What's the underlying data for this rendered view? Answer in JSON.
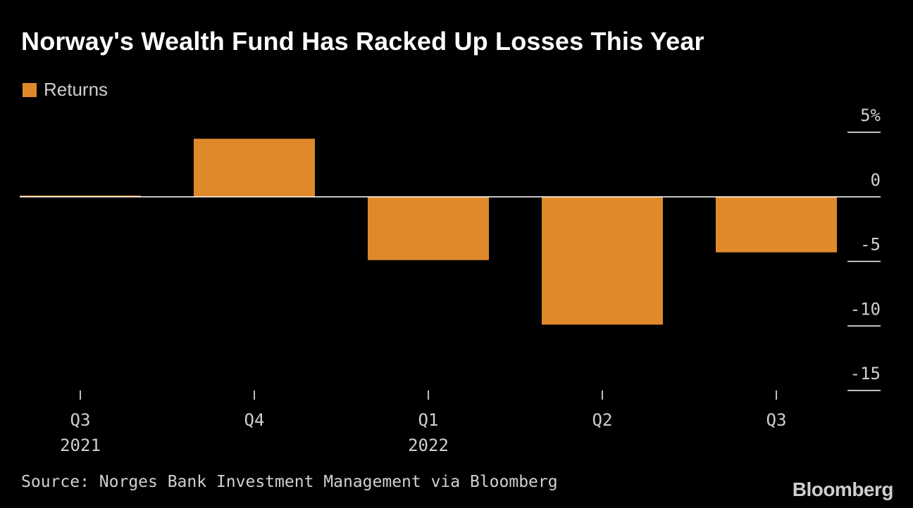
{
  "chart_data": {
    "type": "bar",
    "title": "Norway's Wealth Fund Has Racked Up Losses This Year",
    "legend": [
      "Returns"
    ],
    "legend_position": "top-left",
    "categories": [
      {
        "quarter": "Q3",
        "year": "2021"
      },
      {
        "quarter": "Q4",
        "year": ""
      },
      {
        "quarter": "Q1",
        "year": "2022"
      },
      {
        "quarter": "Q2",
        "year": ""
      },
      {
        "quarter": "Q3",
        "year": ""
      }
    ],
    "series": [
      {
        "name": "Returns",
        "values": [
          0.1,
          4.5,
          -4.9,
          -9.9,
          -4.3
        ]
      }
    ],
    "ylim": [
      -15,
      5
    ],
    "y_ticks": [
      {
        "value": 5,
        "label": "5%"
      },
      {
        "value": 0,
        "label": "0"
      },
      {
        "value": -5,
        "label": "-5"
      },
      {
        "value": -10,
        "label": "-10"
      },
      {
        "value": -15,
        "label": "-15"
      }
    ],
    "y_axis_side": "right",
    "grid": false,
    "bar_color": "#e0892a",
    "zero_line_color": "#ffffff",
    "source": "Source: Norges Bank Investment Management via Bloomberg"
  },
  "branding": {
    "logo_text": "Bloomberg"
  }
}
